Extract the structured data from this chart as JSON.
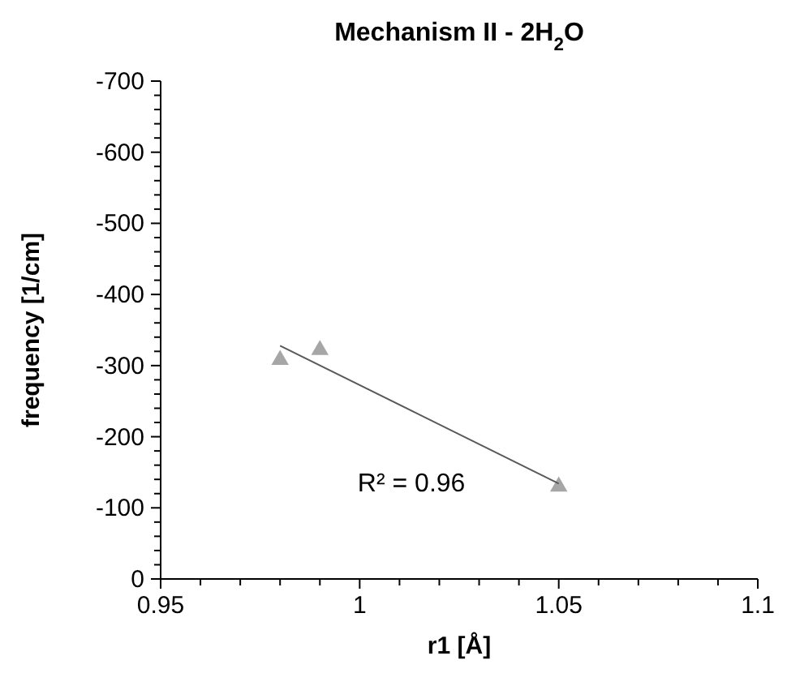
{
  "chart_data": {
    "type": "scatter",
    "title": "Mechanism II - 2H$_{2}$O",
    "xlabel": "r1 [Å]",
    "ylabel": "frequency [1/cm]",
    "xlim": [
      0.95,
      1.1
    ],
    "xticks": [
      0.95,
      {
        "value": 0.96,
        "label": null
      },
      {
        "value": 0.97,
        "label": null
      },
      {
        "value": 0.98,
        "label": null
      },
      {
        "value": 0.99,
        "label": null
      },
      1,
      {
        "value": 1.01,
        "label": null
      },
      {
        "value": 1.02,
        "label": null
      },
      {
        "value": 1.03,
        "label": null
      },
      {
        "value": 1.04,
        "label": null
      },
      1.05,
      {
        "value": 1.06,
        "label": null
      },
      {
        "value": 1.07,
        "label": null
      },
      {
        "value": 1.08,
        "label": null
      },
      {
        "value": 1.09,
        "label": null
      },
      1.1
    ],
    "ylim": [
      0,
      -700
    ],
    "yticks": [
      0,
      {
        "value": -20,
        "label": null
      },
      {
        "value": -40,
        "label": null
      },
      {
        "value": -60,
        "label": null
      },
      {
        "value": -80,
        "label": null
      },
      -100,
      {
        "value": -120,
        "label": null
      },
      {
        "value": -140,
        "label": null
      },
      {
        "value": -160,
        "label": null
      },
      {
        "value": -180,
        "label": null
      },
      -200,
      {
        "value": -220,
        "label": null
      },
      {
        "value": -240,
        "label": null
      },
      {
        "value": -260,
        "label": null
      },
      {
        "value": -280,
        "label": null
      },
      -300,
      {
        "value": -320,
        "label": null
      },
      {
        "value": -340,
        "label": null
      },
      {
        "value": -360,
        "label": null
      },
      {
        "value": -380,
        "label": null
      },
      -400,
      {
        "value": -420,
        "label": null
      },
      {
        "value": -440,
        "label": null
      },
      {
        "value": -460,
        "label": null
      },
      {
        "value": -480,
        "label": null
      },
      -500,
      {
        "value": -520,
        "label": null
      },
      {
        "value": -540,
        "label": null
      },
      {
        "value": -560,
        "label": null
      },
      {
        "value": -580,
        "label": null
      },
      -600,
      {
        "value": -620,
        "label": null
      },
      {
        "value": -640,
        "label": null
      },
      {
        "value": -660,
        "label": null
      },
      {
        "value": -680,
        "label": null
      },
      -700
    ],
    "grid": false,
    "marker": "triangle",
    "series": [
      {
        "type": "scatter",
        "color": "#a6a6a6",
        "x": [
          0.98,
          0.99,
          1.05
        ],
        "values": [
          -308,
          -322,
          -130
        ]
      },
      {
        "type": "line",
        "color": "#595959",
        "marker": "none",
        "line_style": "solid",
        "x": [
          0.98,
          1.05
        ],
        "values": [
          -328,
          -134
        ]
      }
    ],
    "annotations": [
      "R² = 0.96"
    ]
  }
}
